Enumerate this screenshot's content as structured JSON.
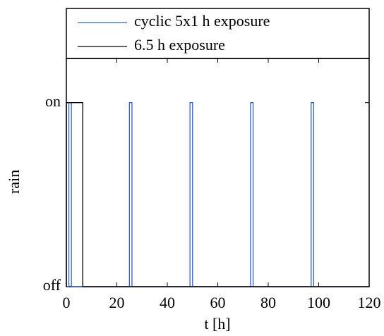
{
  "chart_data": {
    "type": "line",
    "xlabel": "t [h]",
    "ylabel": "rain",
    "xlim": [
      0,
      120
    ],
    "xticks": [
      0,
      20,
      40,
      60,
      80,
      100,
      120
    ],
    "ylim": [
      0,
      1.24
    ],
    "yticks": [
      {
        "value": 0,
        "label": "off"
      },
      {
        "value": 1,
        "label": "on"
      }
    ],
    "legend": "above",
    "series": [
      {
        "name": "cyclic 5x1 h exposure",
        "color": "#2f5fd0",
        "x": [
          0,
          1,
          1,
          2,
          2,
          25,
          25,
          26,
          26,
          49,
          49,
          50,
          50,
          73,
          73,
          74,
          74,
          97,
          97,
          98,
          98,
          120
        ],
        "values": [
          0,
          0,
          1,
          1,
          0,
          0,
          1,
          1,
          0,
          0,
          1,
          1,
          0,
          0,
          1,
          1,
          0,
          0,
          1,
          1,
          0,
          0
        ]
      },
      {
        "name": "6.5 h exposure",
        "color": "#000000",
        "x": [
          0,
          0,
          6.5,
          6.5,
          120
        ],
        "values": [
          0,
          1,
          1,
          0,
          0
        ]
      }
    ]
  }
}
